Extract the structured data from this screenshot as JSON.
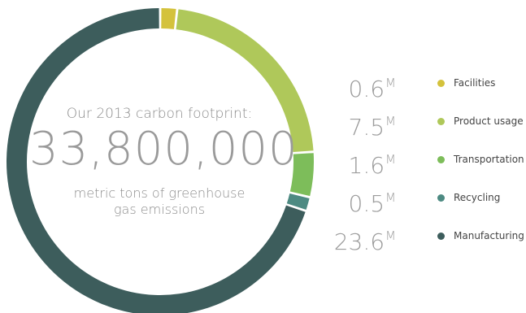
{
  "headline": "Our 2013 carbon footprint:",
  "total": "33,800,000",
  "caption_line1": "metric tons of greenhouse",
  "caption_line2": "gas emissions",
  "unit_suffix": "M",
  "chart_data": {
    "type": "pie",
    "title": "Our 2013 carbon footprint:",
    "total_label": "33,800,000",
    "unit": "M",
    "categories": [
      "Facilities",
      "Product usage",
      "Transportation",
      "Recycling",
      "Manufacturing"
    ],
    "values": [
      0.6,
      7.5,
      1.6,
      0.5,
      23.6
    ],
    "value_labels": [
      "0.6",
      "7.5",
      "1.6",
      "0.5",
      "23.6"
    ],
    "colors": [
      "#d4c23c",
      "#afc85a",
      "#7dbd5a",
      "#4d8a82",
      "#3d5d5c"
    ],
    "legend_position": "right"
  }
}
